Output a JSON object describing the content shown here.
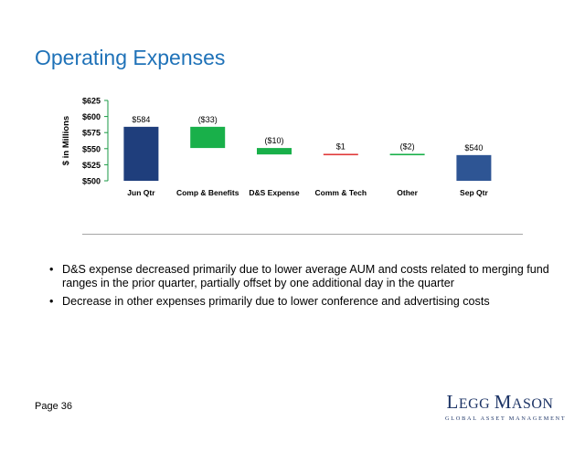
{
  "page": {
    "title": "Operating Expenses",
    "page_number": "Page 36",
    "bullets": [
      "D&S expense decreased primarily due to lower average AUM and costs related to merging fund ranges in the prior quarter, partially offset by one additional day in the quarter",
      "Decrease in other expenses primarily due to lower conference and advertising costs"
    ],
    "logo": {
      "first_letter_1": "L",
      "rest_1": "EGG",
      "first_letter_2": "M",
      "rest_2": "ASON",
      "tagline": "GLOBAL ASSET MANAGEMENT"
    }
  },
  "chart_data": {
    "type": "bar",
    "subtype": "waterfall",
    "ylabel": "$ in Millions",
    "ylim": [
      500,
      625
    ],
    "yticks": [
      500,
      525,
      550,
      575,
      600,
      625
    ],
    "ytick_labels": [
      "$500",
      "$525",
      "$550",
      "$575",
      "$600",
      "$625"
    ],
    "categories": [
      "Jun Qtr",
      "Comp & Benefits",
      "D&S Expense",
      "Comm & Tech",
      "Other",
      "Sep Qtr"
    ],
    "steps": [
      {
        "category": "Jun Qtr",
        "kind": "total",
        "value": 584,
        "label": "$584",
        "color": "#1f3e7c"
      },
      {
        "category": "Comp & Benefits",
        "kind": "change",
        "value": -33,
        "label": "($33)",
        "color": "#19b04a"
      },
      {
        "category": "D&S Expense",
        "kind": "change",
        "value": -10,
        "label": "($10)",
        "color": "#19b04a"
      },
      {
        "category": "Comm & Tech",
        "kind": "change",
        "value": 1,
        "label": "$1",
        "color": "#e03a3a"
      },
      {
        "category": "Other",
        "kind": "change",
        "value": -2,
        "label": "($2)",
        "color": "#19b04a"
      },
      {
        "category": "Sep Qtr",
        "kind": "total",
        "value": 540,
        "label": "$540",
        "color": "#2e5594"
      }
    ],
    "colors": {
      "axis": "#1a9a44",
      "text": "#000000"
    },
    "grid": false,
    "legend": "none"
  }
}
